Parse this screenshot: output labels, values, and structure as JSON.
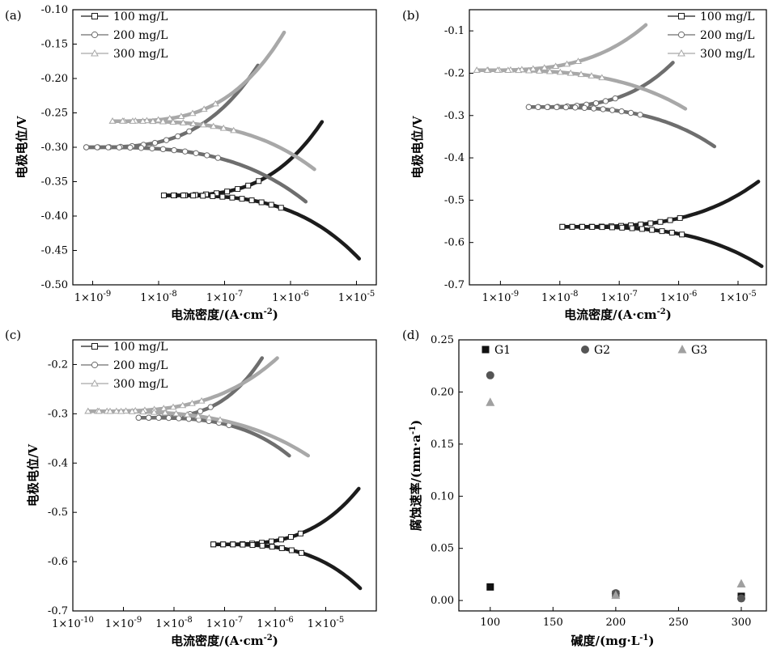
{
  "colors": {
    "s100": "#1c1c1c",
    "s200": "#6e6e6e",
    "s300": "#a8a8a8",
    "G1": "#111111",
    "G2": "#555555",
    "G3": "#a0a0a0"
  },
  "chart_data": [
    {
      "panel": "(a)",
      "type": "line",
      "xlabel": "电流密度/(A·cm⁻²)",
      "ylabel": "电极电位/V",
      "xscale": "log",
      "xlim": [
        5e-10,
        2e-05
      ],
      "ylim": [
        -0.5,
        -0.1
      ],
      "xticks": [
        1e-09,
        1e-08,
        1e-07,
        1e-06,
        1e-05
      ],
      "xtick_labels": [
        "1×10⁻⁹",
        "1×10⁻⁸",
        "1×10⁻⁷",
        "1×10⁻⁶",
        "1×10⁻⁵"
      ],
      "yticks": [
        -0.5,
        -0.45,
        -0.4,
        -0.35,
        -0.3,
        -0.25,
        -0.2,
        -0.15,
        -0.1
      ],
      "ytick_labels": [
        "-0.50",
        "-0.45",
        "-0.40",
        "-0.35",
        "-0.30",
        "-0.25",
        "-0.20",
        "-0.15",
        "-0.10"
      ],
      "legend_position": "top-left",
      "series": [
        {
          "name": "100 mg/L",
          "ecorr": -0.37,
          "x0": 1.2e-08,
          "anodic": [
            3e-06,
            -0.263
          ],
          "cathodic": [
            1.1e-05,
            -0.462
          ]
        },
        {
          "name": "200 mg/L",
          "ecorr": -0.3,
          "x0": 8e-10,
          "anodic": [
            3.2e-07,
            -0.181
          ],
          "cathodic": [
            1.7e-06,
            -0.379
          ]
        },
        {
          "name": "300 mg/L",
          "ecorr": -0.262,
          "x0": 2e-09,
          "anodic": [
            8e-07,
            -0.133
          ],
          "cathodic": [
            2.3e-06,
            -0.332
          ]
        }
      ]
    },
    {
      "panel": "(b)",
      "type": "line",
      "xlabel": "电流密度/(A·cm⁻²)",
      "ylabel": "电极电位/V",
      "xscale": "log",
      "xlim": [
        3e-10,
        3e-05
      ],
      "ylim": [
        -0.7,
        -0.05
      ],
      "xticks": [
        1e-09,
        1e-08,
        1e-07,
        1e-06,
        1e-05
      ],
      "xtick_labels": [
        "1×10⁻⁹",
        "1×10⁻⁸",
        "1×10⁻⁷",
        "1×10⁻⁶",
        "1×10⁻⁵"
      ],
      "yticks": [
        -0.7,
        -0.6,
        -0.5,
        -0.4,
        -0.3,
        -0.2,
        -0.1
      ],
      "ytick_labels": [
        "-0.7",
        "-0.6",
        "-0.5",
        "-0.4",
        "-0.3",
        "-0.2",
        "-0.1"
      ],
      "legend_position": "top-right",
      "series": [
        {
          "name": "100 mg/L",
          "ecorr": -0.563,
          "x0": 1.1e-08,
          "anodic": [
            2.2e-05,
            -0.456
          ],
          "cathodic": [
            2.5e-05,
            -0.656
          ]
        },
        {
          "name": "200 mg/L",
          "ecorr": -0.28,
          "x0": 3e-09,
          "anodic": [
            8e-07,
            -0.175
          ],
          "cathodic": [
            4e-06,
            -0.373
          ]
        },
        {
          "name": "300 mg/L",
          "ecorr": -0.193,
          "x0": 4e-10,
          "anodic": [
            2.8e-07,
            -0.086
          ],
          "cathodic": [
            1.3e-06,
            -0.284
          ]
        }
      ]
    },
    {
      "panel": "(c)",
      "type": "line",
      "xlabel": "电流密度/(A·cm⁻²)",
      "ylabel": "电极电位/V",
      "xscale": "log",
      "xlim": [
        1e-10,
        0.0001
      ],
      "ylim": [
        -0.7,
        -0.15
      ],
      "xticks": [
        1e-10,
        1e-09,
        1e-08,
        1e-07,
        1e-06,
        1e-05
      ],
      "xtick_labels": [
        "1×10⁻¹⁰",
        "1×10⁻⁹",
        "1×10⁻⁸",
        "1×10⁻⁷",
        "1×10⁻⁶",
        "1×10⁻⁵"
      ],
      "yticks": [
        -0.7,
        -0.6,
        -0.5,
        -0.4,
        -0.3,
        -0.2
      ],
      "ytick_labels": [
        "-0.7",
        "-0.6",
        "-0.5",
        "-0.4",
        "-0.3",
        "-0.2"
      ],
      "legend_position": "top-left",
      "series": [
        {
          "name": "100 mg/L",
          "ecorr": -0.565,
          "x0": 6e-08,
          "anodic": [
            4.5e-05,
            -0.452
          ],
          "cathodic": [
            4.8e-05,
            -0.654
          ]
        },
        {
          "name": "200 mg/L",
          "ecorr": -0.308,
          "x0": 2e-09,
          "anodic": [
            5.5e-07,
            -0.187
          ],
          "cathodic": [
            1.9e-06,
            -0.385
          ]
        },
        {
          "name": "300 mg/L",
          "ecorr": -0.295,
          "x0": 2e-10,
          "anodic": [
            1.1e-06,
            -0.187
          ],
          "cathodic": [
            4.5e-06,
            -0.385
          ]
        }
      ]
    },
    {
      "panel": "(d)",
      "type": "scatter",
      "xlabel": "碱度/(mg·L⁻¹)",
      "ylabel": "腐蚀速率/(mm·a⁻¹)",
      "xlim": [
        75,
        320
      ],
      "ylim": [
        -0.01,
        0.25
      ],
      "xticks": [
        100,
        150,
        200,
        250,
        300
      ],
      "xtick_labels": [
        "100",
        "150",
        "200",
        "250",
        "300"
      ],
      "yticks": [
        0.0,
        0.05,
        0.1,
        0.15,
        0.2,
        0.25
      ],
      "ytick_labels": [
        "0.00",
        "0.05",
        "0.10",
        "0.15",
        "0.20",
        "0.25"
      ],
      "legend_position": "top",
      "series": [
        {
          "name": "G1",
          "marker": "square",
          "x": [
            100,
            200,
            300
          ],
          "y": [
            0.013,
            0.006,
            0.004
          ]
        },
        {
          "name": "G2",
          "marker": "circle",
          "x": [
            100,
            200,
            300
          ],
          "y": [
            0.216,
            0.007,
            0.002
          ]
        },
        {
          "name": "G3",
          "marker": "triangle",
          "x": [
            100,
            200,
            300
          ],
          "y": [
            0.19,
            0.005,
            0.016
          ]
        }
      ]
    }
  ]
}
